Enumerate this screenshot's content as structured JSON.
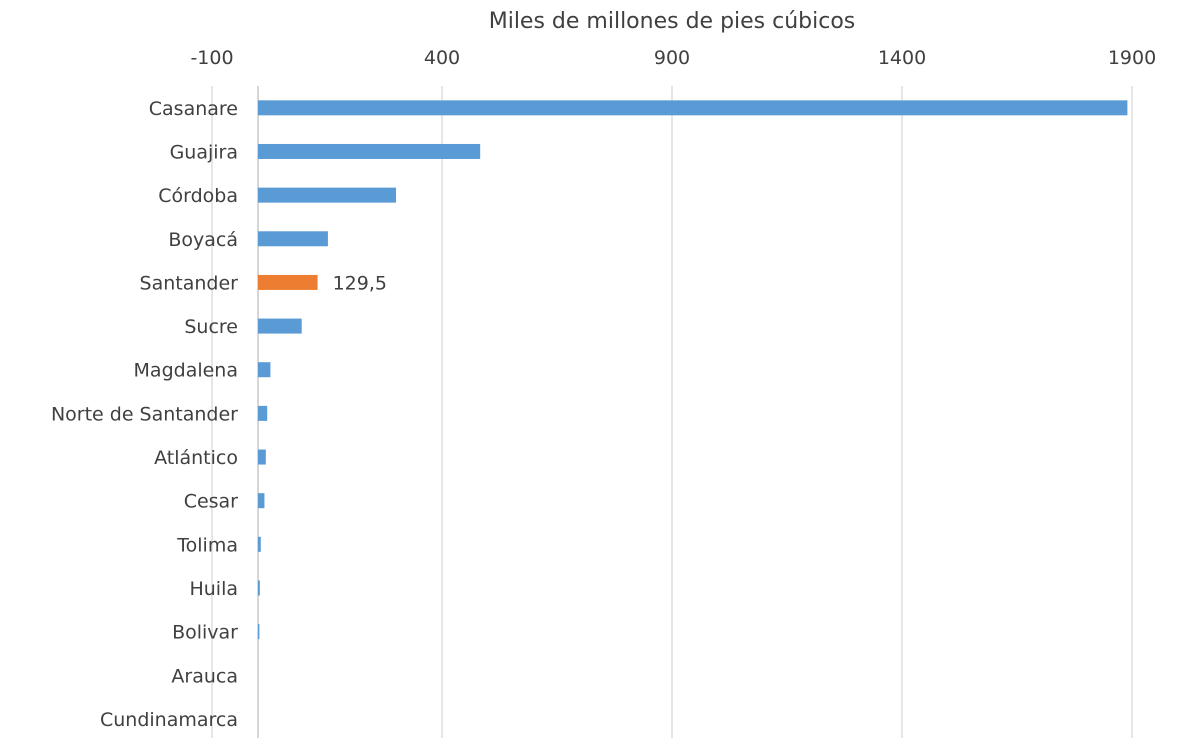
{
  "chart_data": {
    "type": "bar",
    "orientation": "horizontal",
    "xlabel": "Miles de millones de pies cúbicos",
    "xaxis_position": "top",
    "xlim": [
      -100,
      1900
    ],
    "xticks": [
      -100,
      400,
      900,
      1400,
      1900
    ],
    "xtick_labels": [
      "-100",
      "400",
      "900",
      "1400",
      "1900"
    ],
    "grid": true,
    "legend": "none",
    "categories": [
      "Casanare",
      "Guajira",
      "Córdoba",
      "Boyacá",
      "Santander",
      "Sucre",
      "Magdalena",
      "Norte de Santander",
      "Atlántico",
      "Cesar",
      "Tolima",
      "Huila",
      "Bolivar",
      "Arauca",
      "Cundinamarca"
    ],
    "values": [
      1890,
      483,
      300,
      152,
      129.5,
      95,
      27,
      20,
      17,
      14,
      6,
      4,
      3,
      0,
      0
    ],
    "colors": {
      "default": "#5b9bd5",
      "highlight": "#ed7d31"
    },
    "highlight_category": "Santander",
    "data_labels": [
      {
        "category": "Santander",
        "text": "129,5"
      }
    ]
  }
}
